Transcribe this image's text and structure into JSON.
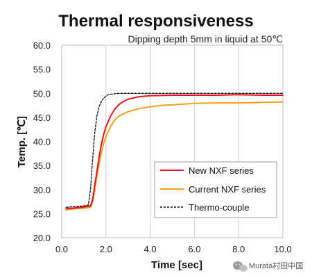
{
  "chart_data": {
    "type": "line",
    "title": "Thermal responsiveness",
    "subtitle": "Dipping depth 5mm in liquid at 50℃",
    "xlabel": "Time [sec]",
    "ylabel": "Temp. [℃]",
    "xlim": [
      0.0,
      10.0
    ],
    "ylim": [
      20.0,
      60.0
    ],
    "xticks": [
      "0.0",
      "2.0",
      "4.0",
      "6.0",
      "8.0",
      "10.0"
    ],
    "yticks": [
      "20.0",
      "25.0",
      "30.0",
      "35.0",
      "40.0",
      "45.0",
      "50.0",
      "55.0",
      "60.0"
    ],
    "grid": "vertical",
    "legend_position": "bottom-right",
    "series": [
      {
        "name": "New NXF series",
        "color": "#e8101e",
        "dash": "solid",
        "x": [
          0.2,
          0.6,
          1.0,
          1.3,
          1.4,
          1.5,
          1.6,
          1.7,
          1.8,
          1.9,
          2.0,
          2.2,
          2.4,
          2.6,
          2.8,
          3.0,
          3.5,
          4.0,
          5.0,
          6.0,
          7.0,
          8.0,
          9.0,
          10.0
        ],
        "y": [
          26.0,
          26.2,
          26.4,
          26.6,
          28.0,
          31.0,
          34.0,
          37.0,
          39.5,
          41.5,
          43.0,
          45.2,
          46.7,
          47.7,
          48.3,
          48.8,
          49.3,
          49.5,
          49.6,
          49.6,
          49.6,
          49.7,
          49.6,
          49.6
        ]
      },
      {
        "name": "Current NXF series",
        "color": "#f0a020",
        "dash": "solid",
        "x": [
          0.2,
          0.6,
          1.0,
          1.3,
          1.4,
          1.5,
          1.6,
          1.7,
          1.8,
          1.9,
          2.0,
          2.2,
          2.4,
          2.6,
          3.0,
          3.5,
          4.0,
          4.5,
          5.0,
          6.0,
          7.0,
          8.0,
          9.0,
          10.0
        ],
        "y": [
          25.8,
          26.0,
          26.1,
          26.3,
          27.5,
          30.0,
          33.0,
          35.5,
          37.8,
          39.6,
          41.0,
          43.0,
          44.5,
          45.3,
          46.2,
          46.8,
          47.2,
          47.5,
          47.6,
          47.9,
          48.0,
          48.0,
          48.1,
          48.2
        ]
      },
      {
        "name": "Thermo-couple",
        "color": "#111111",
        "dash": "dashed",
        "x": [
          0.2,
          0.6,
          1.0,
          1.2,
          1.3,
          1.4,
          1.5,
          1.6,
          1.7,
          1.8,
          1.9,
          2.0,
          2.1,
          2.2,
          2.4,
          2.6,
          3.0,
          4.0,
          6.0,
          8.0,
          10.0
        ],
        "y": [
          26.3,
          26.5,
          26.6,
          26.8,
          30.0,
          36.5,
          42.0,
          45.5,
          47.3,
          48.4,
          49.0,
          49.4,
          49.7,
          49.8,
          49.9,
          50.0,
          50.0,
          50.0,
          50.0,
          50.0,
          50.0
        ]
      }
    ]
  },
  "watermark": {
    "icon": "wechat-icon",
    "text": "Murata村田中国"
  }
}
